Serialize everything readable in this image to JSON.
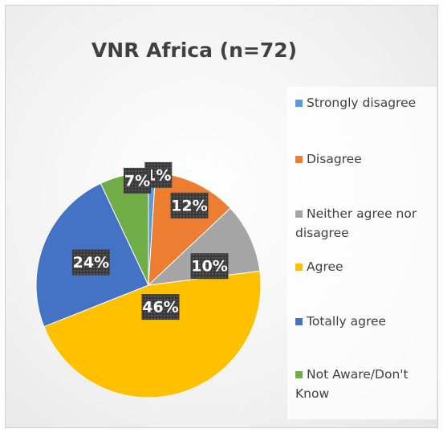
{
  "chart_data": {
    "type": "pie",
    "title": "VNR Africa (n=72)",
    "categories": [
      "Strongly disagree",
      "Disagree",
      "Neither agree nor disagree",
      "Agree",
      "Totally agree",
      "Not Aware/Don't Know"
    ],
    "values": [
      1,
      12,
      10,
      46,
      24,
      7
    ],
    "value_labels": [
      "1%",
      "12%",
      "10%",
      "46%",
      "24%",
      "7%"
    ],
    "colors": [
      "#5b9bd5",
      "#ed7d31",
      "#a5a5a5",
      "#ffc000",
      "#4472c4",
      "#70ad47"
    ],
    "legend": "right"
  }
}
